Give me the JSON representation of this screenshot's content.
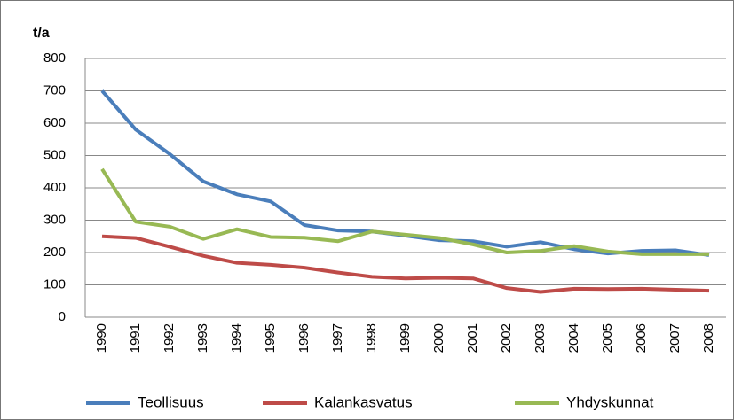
{
  "chart_data": {
    "type": "line",
    "y_label": "t/a",
    "categories": [
      "1990",
      "1991",
      "1992",
      "1993",
      "1994",
      "1995",
      "1996",
      "1997",
      "1998",
      "1999",
      "2000",
      "2001",
      "2002",
      "2003",
      "2004",
      "2005",
      "2006",
      "2007",
      "2008"
    ],
    "series": [
      {
        "name": "Teollisuus",
        "color": "#4a7ebb",
        "values": [
          700,
          580,
          505,
          420,
          380,
          358,
          285,
          268,
          265,
          252,
          238,
          235,
          218,
          232,
          210,
          197,
          205,
          207,
          192
        ]
      },
      {
        "name": "Kalankasvatus",
        "color": "#be4b48",
        "values": [
          250,
          245,
          218,
          190,
          168,
          162,
          153,
          138,
          125,
          120,
          122,
          120,
          90,
          78,
          88,
          87,
          88,
          85,
          82
        ]
      },
      {
        "name": "Yhdyskunnat",
        "color": "#98b954",
        "values": [
          458,
          295,
          280,
          242,
          272,
          248,
          246,
          235,
          265,
          255,
          245,
          225,
          200,
          205,
          220,
          203,
          195,
          195,
          195
        ]
      }
    ],
    "ylim": [
      0,
      800
    ],
    "yticks": [
      0,
      100,
      200,
      300,
      400,
      500,
      600,
      700,
      800
    ],
    "grid": true,
    "legend": "bottom"
  }
}
